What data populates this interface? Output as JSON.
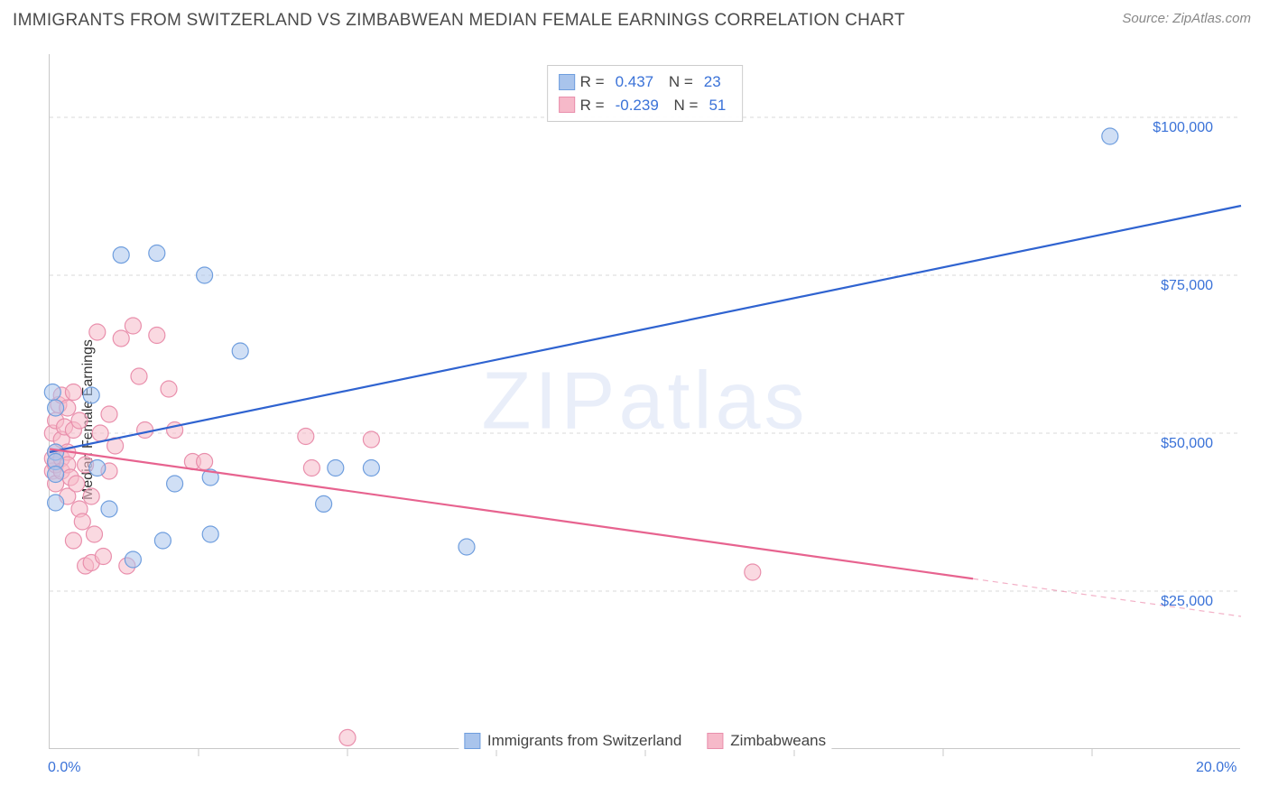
{
  "title": "IMMIGRANTS FROM SWITZERLAND VS ZIMBABWEAN MEDIAN FEMALE EARNINGS CORRELATION CHART",
  "source_label": "Source:",
  "source_name": "ZipAtlas.com",
  "ylabel": "Median Female Earnings",
  "watermark": "ZIPatlas",
  "chart": {
    "type": "scatter-with-regression",
    "xlim": [
      0,
      20
    ],
    "ylim": [
      0,
      110000
    ],
    "xticks": [
      0,
      20
    ],
    "xtick_labels": [
      "0.0%",
      "20.0%"
    ],
    "xtick_minor": [
      2.5,
      5,
      7.5,
      10,
      12.5,
      15,
      17.5
    ],
    "yticks": [
      25000,
      50000,
      75000,
      100000
    ],
    "ytick_labels": [
      "$25,000",
      "$50,000",
      "$75,000",
      "$100,000"
    ],
    "grid_color": "#d9d9d9",
    "grid_dash": "4,4",
    "axis_color": "#c8c8c8",
    "background": "#ffffff",
    "marker_radius": 9,
    "marker_opacity": 0.55,
    "line_width": 2.2,
    "series": [
      {
        "name": "Immigrants from Switzerland",
        "color_fill": "#a9c4ec",
        "color_stroke": "#6f9ede",
        "line_color": "#2f63d0",
        "r": "0.437",
        "n": "23",
        "regression": {
          "x1": 0,
          "y1": 47000,
          "x2": 20,
          "y2": 86000,
          "dashed_from_x": null
        },
        "points": [
          [
            0.05,
            56500
          ],
          [
            0.1,
            54000
          ],
          [
            0.1,
            47000
          ],
          [
            0.1,
            45500
          ],
          [
            0.1,
            43500
          ],
          [
            0.1,
            39000
          ],
          [
            0.7,
            56000
          ],
          [
            0.8,
            44500
          ],
          [
            1.0,
            38000
          ],
          [
            1.2,
            78200
          ],
          [
            1.4,
            30000
          ],
          [
            1.8,
            78500
          ],
          [
            1.9,
            33000
          ],
          [
            2.1,
            42000
          ],
          [
            2.6,
            75000
          ],
          [
            2.7,
            43000
          ],
          [
            2.7,
            34000
          ],
          [
            3.2,
            63000
          ],
          [
            4.6,
            38800
          ],
          [
            4.8,
            44500
          ],
          [
            5.4,
            44500
          ],
          [
            7.0,
            32000
          ],
          [
            17.8,
            97000
          ]
        ]
      },
      {
        "name": "Zimbabweans",
        "color_fill": "#f6b9c9",
        "color_stroke": "#e98fac",
        "line_color": "#e7638f",
        "r": "-0.239",
        "n": "51",
        "regression": {
          "x1": 0,
          "y1": 47500,
          "x2": 20,
          "y2": 21000,
          "dashed_from_x": 15.5
        },
        "points": [
          [
            0.05,
            50000
          ],
          [
            0.05,
            46000
          ],
          [
            0.05,
            44000
          ],
          [
            0.1,
            52000
          ],
          [
            0.1,
            47000
          ],
          [
            0.1,
            45000
          ],
          [
            0.1,
            42000
          ],
          [
            0.15,
            54500
          ],
          [
            0.2,
            56000
          ],
          [
            0.2,
            49000
          ],
          [
            0.2,
            46000
          ],
          [
            0.2,
            44000
          ],
          [
            0.25,
            51000
          ],
          [
            0.3,
            54000
          ],
          [
            0.3,
            47000
          ],
          [
            0.3,
            45000
          ],
          [
            0.3,
            40000
          ],
          [
            0.35,
            43000
          ],
          [
            0.4,
            56500
          ],
          [
            0.4,
            50500
          ],
          [
            0.4,
            33000
          ],
          [
            0.45,
            42000
          ],
          [
            0.5,
            52000
          ],
          [
            0.5,
            38000
          ],
          [
            0.55,
            36000
          ],
          [
            0.6,
            45000
          ],
          [
            0.6,
            29000
          ],
          [
            0.7,
            29500
          ],
          [
            0.7,
            40000
          ],
          [
            0.75,
            34000
          ],
          [
            0.8,
            66000
          ],
          [
            0.85,
            50000
          ],
          [
            0.9,
            30500
          ],
          [
            1.0,
            53000
          ],
          [
            1.0,
            44000
          ],
          [
            1.1,
            48000
          ],
          [
            1.2,
            65000
          ],
          [
            1.3,
            29000
          ],
          [
            1.4,
            67000
          ],
          [
            1.5,
            59000
          ],
          [
            1.6,
            50500
          ],
          [
            1.8,
            65500
          ],
          [
            2.0,
            57000
          ],
          [
            2.1,
            50500
          ],
          [
            2.4,
            45500
          ],
          [
            2.6,
            45500
          ],
          [
            4.3,
            49500
          ],
          [
            4.4,
            44500
          ],
          [
            5.0,
            1800
          ],
          [
            5.4,
            49000
          ],
          [
            11.8,
            28000
          ]
        ]
      }
    ]
  },
  "stats_box": {
    "r_label": "R =",
    "n_label": "N ="
  },
  "legend_labels": [
    "Immigrants from Switzerland",
    "Zimbabweans"
  ]
}
